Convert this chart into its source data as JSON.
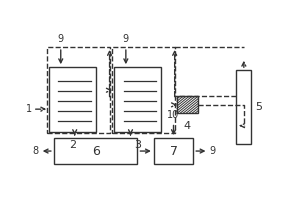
{
  "lc": "#333333",
  "bg": "#ffffff",
  "lw": 1.0,
  "b2": [
    0.05,
    0.3,
    0.2,
    0.42
  ],
  "b3": [
    0.33,
    0.3,
    0.2,
    0.42
  ],
  "b4": [
    0.6,
    0.42,
    0.09,
    0.11
  ],
  "b5": [
    0.855,
    0.22,
    0.065,
    0.48
  ],
  "b6": [
    0.07,
    0.09,
    0.36,
    0.17
  ],
  "b7": [
    0.5,
    0.09,
    0.17,
    0.17
  ],
  "fs": 7
}
